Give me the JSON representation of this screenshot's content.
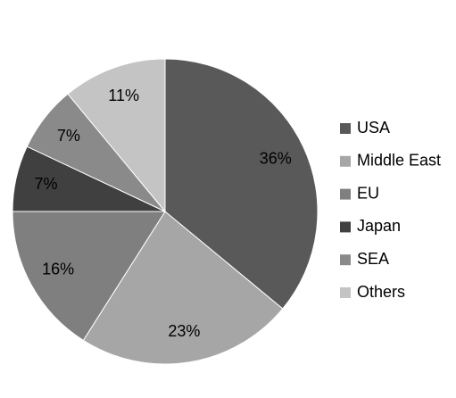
{
  "chart_data": {
    "type": "pie",
    "categories": [
      "USA",
      "Middle East",
      "EU",
      "Japan",
      "SEA",
      "Others"
    ],
    "values": [
      36,
      23,
      16,
      7,
      7,
      11
    ],
    "value_labels": [
      "36%",
      "23%",
      "16%",
      "7%",
      "7%",
      "11%"
    ],
    "colors": [
      "#595959",
      "#a6a6a6",
      "#7f7f7f",
      "#404040",
      "#8a8a8a",
      "#c4c4c4"
    ],
    "legend": "right"
  }
}
